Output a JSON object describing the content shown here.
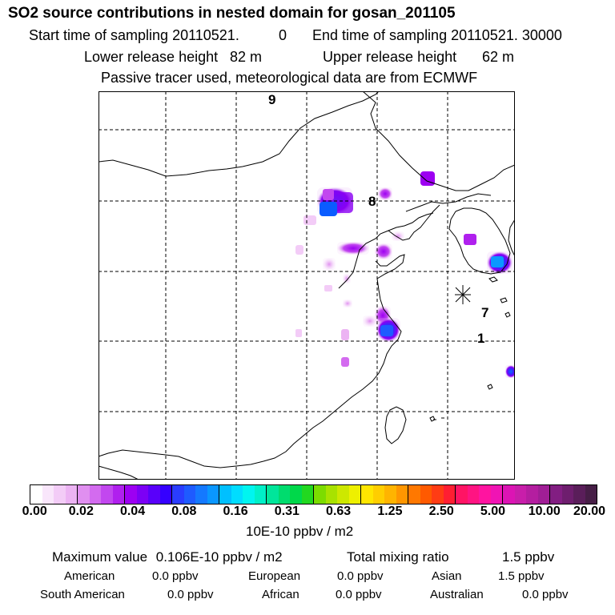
{
  "header": {
    "title": "SO2 source contributions in nested domain for gosan_201105",
    "start_label": "Start time of sampling 20110521.",
    "start_hour": "0",
    "end_label": "End time of sampling 20110521. 30000",
    "lower_label": "Lower release height",
    "lower_value": "82 m",
    "upper_label": "Upper release height",
    "upper_value": "62 m",
    "tracer_note": "Passive tracer used, meteorological data are from ECMWF"
  },
  "map": {
    "labels": [
      "9",
      "8",
      "7",
      "1"
    ],
    "release_marker": "release-site-asterisk",
    "colors": {
      "coast": "#000000",
      "grid": "#000000"
    }
  },
  "legend": {
    "ticks": [
      "0.00",
      "0.02",
      "0.04",
      "0.08",
      "0.16",
      "0.31",
      "0.63",
      "1.25",
      "2.50",
      "5.00",
      "10.00",
      "20.00"
    ],
    "unit": "10E-10 ppbv / m2",
    "colors": [
      "#ffffff",
      "#f9e6fb",
      "#f3ccf7",
      "#ecb3f3",
      "#e08ff0",
      "#d36bef",
      "#c247ef",
      "#b020ee",
      "#9d00f2",
      "#7c00f5",
      "#5900fa",
      "#3500ff",
      "#2a3dff",
      "#1e5bff",
      "#1479ff",
      "#0a97ff",
      "#00c0ff",
      "#00ddff",
      "#00f5f0",
      "#00f0c8",
      "#00e69b",
      "#00dc6e",
      "#00d84a",
      "#22d820",
      "#7cdc00",
      "#a8e200",
      "#cde800",
      "#eef000",
      "#ffe600",
      "#ffce00",
      "#ffb400",
      "#ff9600",
      "#ff7800",
      "#ff5a00",
      "#ff3c14",
      "#ff1e32",
      "#ff1464",
      "#ff1482",
      "#ff14a0",
      "#f014b4",
      "#dc14b4",
      "#c81eaa",
      "#b41ea0",
      "#a01e96",
      "#821e82",
      "#6e1e6e",
      "#5a1e5a",
      "#461e46"
    ]
  },
  "summary": {
    "max_label": "Maximum value",
    "max_value": "0.106E-10 ppbv / m2",
    "total_label": "Total mixing ratio",
    "total_value": "1.5 ppbv",
    "regions": [
      {
        "name": "American",
        "value": "0.0 ppbv"
      },
      {
        "name": "European",
        "value": "0.0 ppbv"
      },
      {
        "name": "Asian",
        "value": "1.5 ppbv"
      },
      {
        "name": "South American",
        "value": "0.0 ppbv"
      },
      {
        "name": "African",
        "value": "0.0 ppbv"
      },
      {
        "name": "Australian",
        "value": "0.0 ppbv"
      }
    ]
  }
}
